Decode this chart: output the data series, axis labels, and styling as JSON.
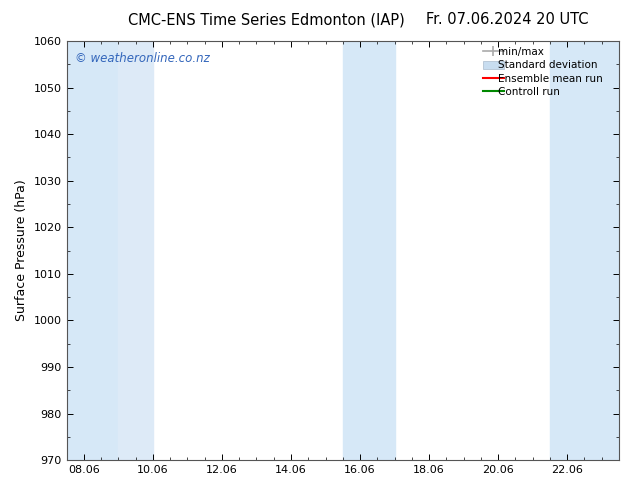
{
  "title_left": "CMC-ENS Time Series Edmonton (IAP)",
  "title_right": "Fr. 07.06.2024 20 UTC",
  "ylabel": "Surface Pressure (hPa)",
  "ylim": [
    970,
    1060
  ],
  "yticks": [
    970,
    980,
    990,
    1000,
    1010,
    1020,
    1030,
    1040,
    1050,
    1060
  ],
  "xtick_labels": [
    "08.06",
    "10.06",
    "12.06",
    "14.06",
    "16.06",
    "18.06",
    "20.06",
    "22.06"
  ],
  "xtick_positions": [
    0,
    2,
    4,
    6,
    8,
    10,
    12,
    14
  ],
  "xlim": [
    -0.5,
    15.5
  ],
  "background_color": "#ffffff",
  "plot_bg_color": "#ffffff",
  "shaded_bands": [
    {
      "x_start": -0.5,
      "x_end": 1.0
    },
    {
      "x_start": 1.0,
      "x_end": 2.0
    },
    {
      "x_start": 7.5,
      "x_end": 9.0
    },
    {
      "x_start": 13.5,
      "x_end": 15.5
    }
  ],
  "band_colors": [
    "#d6e8f7",
    "#ddeaf7",
    "#d6e8f7",
    "#d6e8f7"
  ],
  "watermark_text": "© weatheronline.co.nz",
  "watermark_color": "#3366bb",
  "watermark_fontsize": 8.5,
  "title_fontsize": 10.5,
  "axis_label_fontsize": 9,
  "tick_fontsize": 8,
  "legend_labels": [
    "min/max",
    "Standard deviation",
    "Ensemble mean run",
    "Controll run"
  ],
  "legend_colors": [
    "#aaaaaa",
    "#c8ddf0",
    "#ff0000",
    "#008800"
  ],
  "legend_fontsize": 7.5
}
